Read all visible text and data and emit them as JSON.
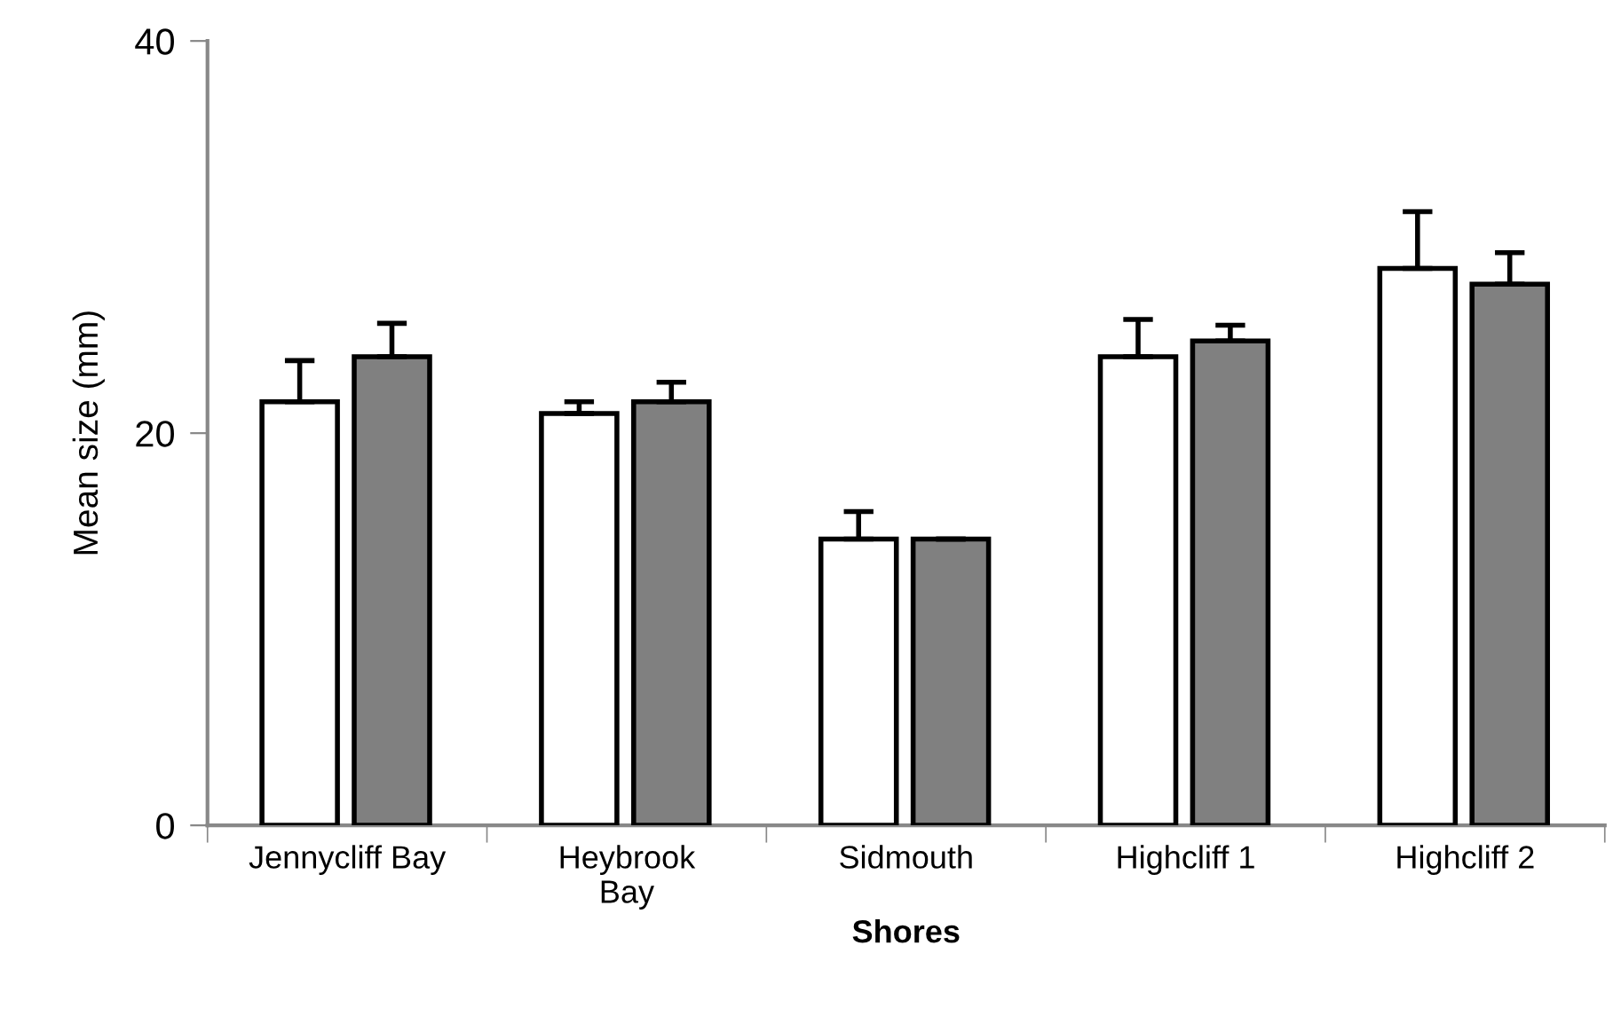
{
  "chart_data": {
    "type": "bar",
    "xlabel": "Shores",
    "ylabel": "Mean size (mm)",
    "categories": [
      "Jennycliff Bay",
      "Heybrook\nBay",
      "Sidmouth",
      "Highcliff 1",
      "Highcliff 2"
    ],
    "series": [
      {
        "color": "#ffffff",
        "values": [
          21.6,
          21.0,
          14.6,
          23.9,
          28.4
        ],
        "errors": [
          [
            21.6,
            23.7
          ],
          [
            21.0,
            21.6
          ],
          [
            14.6,
            16.0
          ],
          [
            23.9,
            25.8
          ],
          [
            28.4,
            31.3
          ]
        ]
      },
      {
        "color": "#808080",
        "values": [
          23.9,
          21.6,
          14.6,
          24.7,
          27.6
        ],
        "errors": [
          [
            23.9,
            25.6
          ],
          [
            21.6,
            22.6
          ],
          [
            14.6,
            14.6
          ],
          [
            24.7,
            25.5
          ],
          [
            27.6,
            29.2
          ]
        ]
      }
    ],
    "ylim": [
      0,
      40
    ],
    "yticks": [
      0,
      20,
      40
    ],
    "grid": false,
    "legend": false
  }
}
